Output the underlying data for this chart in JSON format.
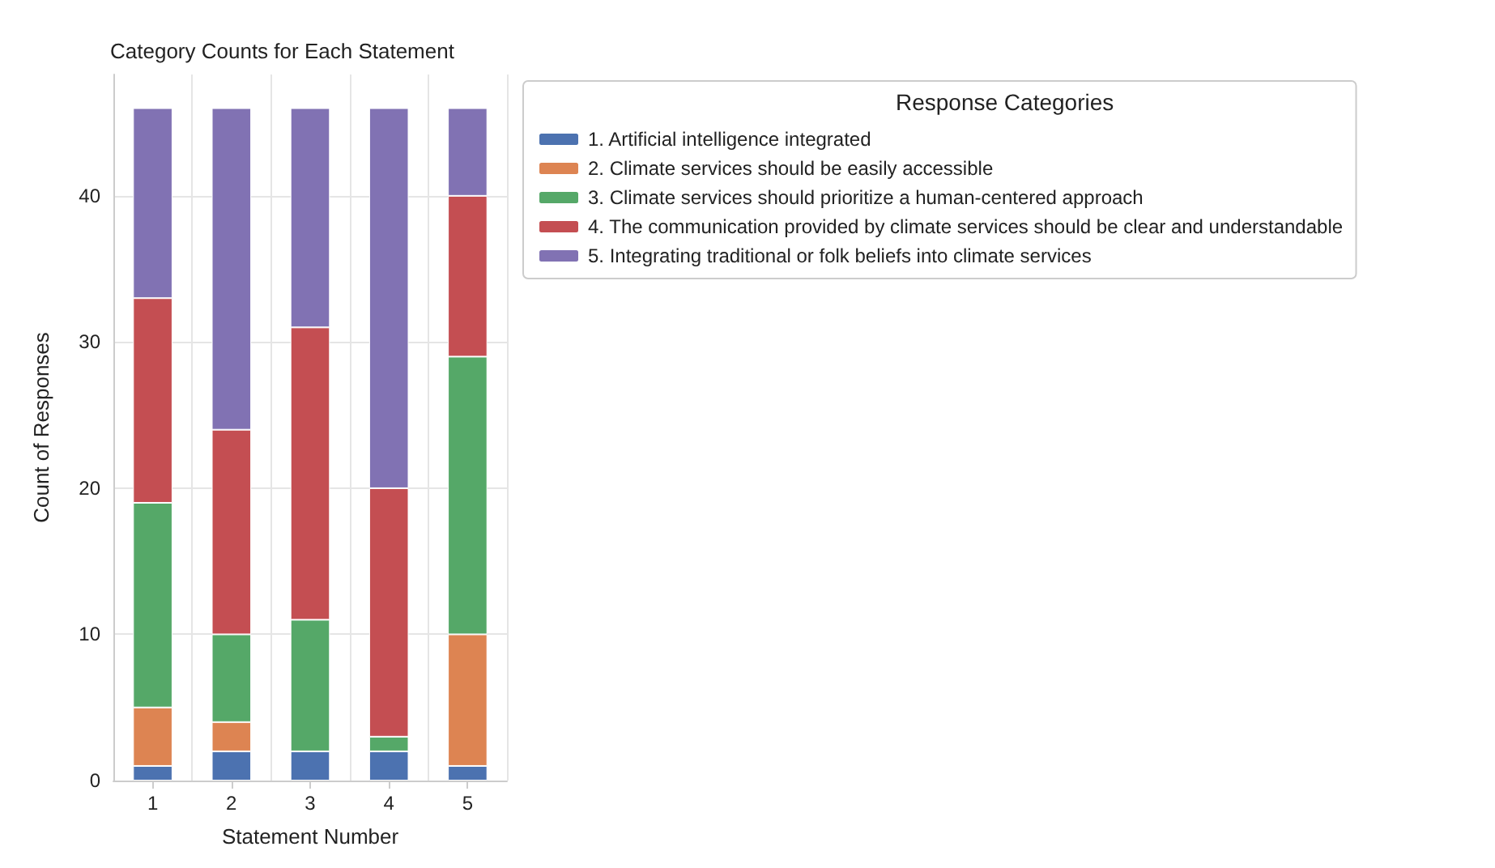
{
  "chart_data": {
    "type": "bar",
    "stacked": true,
    "title": "Category Counts for Each Statement",
    "xlabel": "Statement Number",
    "ylabel": "Count of Responses",
    "legend_title": "Response Categories",
    "legend": "right",
    "grid": true,
    "categories": [
      "1",
      "2",
      "3",
      "4",
      "5"
    ],
    "ylim": [
      0,
      48.3
    ],
    "yticks": [
      0,
      10,
      20,
      30,
      40
    ],
    "series": [
      {
        "name": "1. Artificial intelligence integrated",
        "color": "#4c72b0",
        "values": [
          1,
          2,
          2,
          2,
          1
        ]
      },
      {
        "name": "2. Climate services should be easily accessible",
        "color": "#dd8452",
        "values": [
          4,
          2,
          0,
          0,
          9
        ]
      },
      {
        "name": "3. Climate services should prioritize a human-centered approach",
        "color": "#55a868",
        "values": [
          14,
          6,
          9,
          1,
          19
        ]
      },
      {
        "name": "4. The communication provided by climate services should be clear and understandable",
        "color": "#c44e52",
        "values": [
          14,
          14,
          20,
          17,
          11
        ]
      },
      {
        "name": "5. Integrating traditional or folk beliefs into climate services",
        "color": "#8172b3",
        "values": [
          13,
          22,
          15,
          26,
          6
        ]
      }
    ]
  }
}
